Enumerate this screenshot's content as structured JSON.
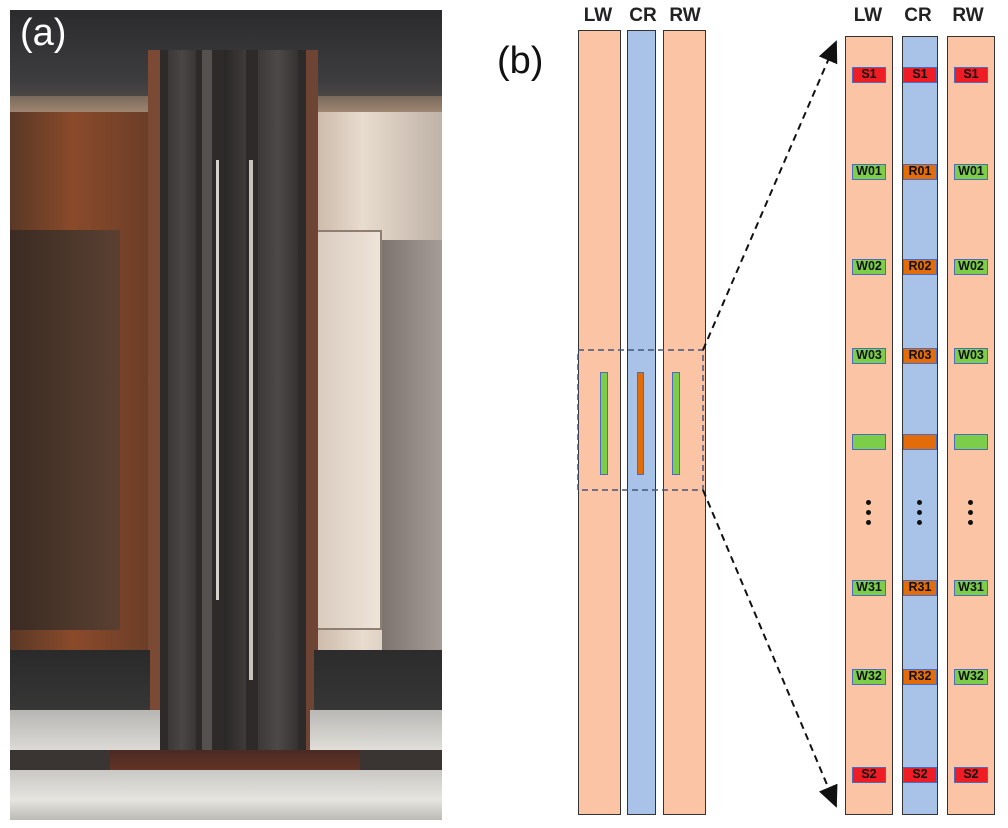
{
  "panels": {
    "a": {
      "label": "(a)"
    },
    "b": {
      "label": "(b)"
    }
  },
  "overview": {
    "headers": {
      "lw": "LW",
      "cr": "CR",
      "rw": "RW"
    }
  },
  "detail": {
    "headers": {
      "lw": "LW",
      "cr": "CR",
      "rw": "RW"
    },
    "rows": [
      {
        "lw": "S1",
        "cr": "S1",
        "rw": "S1",
        "kind": "s"
      },
      {
        "lw": "W01",
        "cr": "R01",
        "rw": "W01",
        "kind": "wr"
      },
      {
        "lw": "W02",
        "cr": "R02",
        "rw": "W02",
        "kind": "wr"
      },
      {
        "lw": "W03",
        "cr": "R03",
        "rw": "W03",
        "kind": "wr"
      },
      {
        "lw": "",
        "cr": "",
        "rw": "",
        "kind": "wr"
      },
      {
        "lw": "W31",
        "cr": "R31",
        "rw": "W31",
        "kind": "wr"
      },
      {
        "lw": "W32",
        "cr": "R32",
        "rw": "W32",
        "kind": "wr"
      },
      {
        "lw": "S2",
        "cr": "S2",
        "rw": "S2",
        "kind": "s"
      }
    ]
  },
  "colors": {
    "wall_strip": "#fbc4a4",
    "center_strip": "#a9c3e8",
    "sensor_s": "#ee1c24",
    "sensor_w": "#7ccd4a",
    "sensor_r": "#e36c0a"
  }
}
